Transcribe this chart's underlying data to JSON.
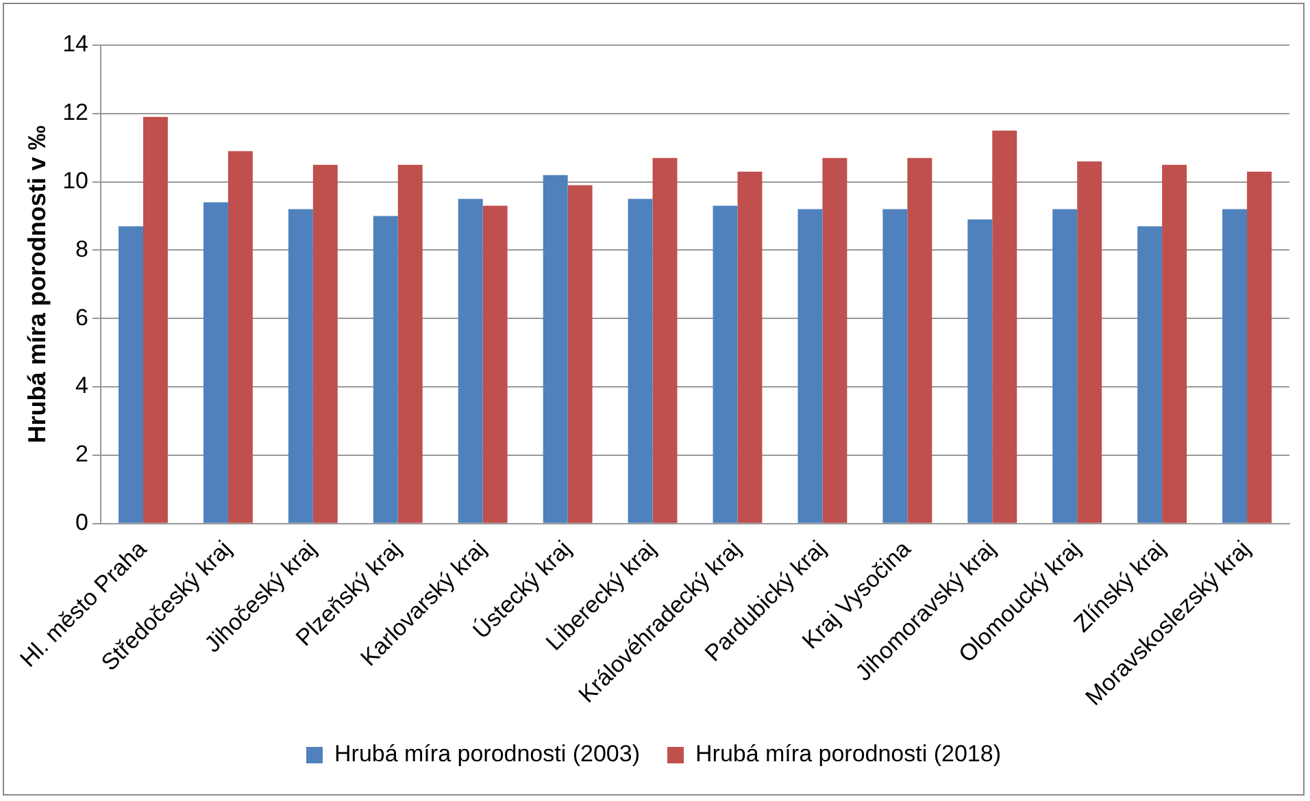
{
  "chart_data": {
    "type": "bar",
    "ylabel": "Hrubá míra porodnosti v ‰",
    "categories": [
      "Hl. město Praha",
      "Středočeský kraj",
      "Jihočeský kraj",
      "Plzeňský kraj",
      "Karlovarský kraj",
      "Ústecký kraj",
      "Liberecký kraj",
      "Královéhradecký kraj",
      "Pardubický kraj",
      "Kraj Vysočina",
      "Jihomoravský kraj",
      "Olomoucký kraj",
      "Zlínský kraj",
      "Moravskoslezský kraj"
    ],
    "series": [
      {
        "name": "Hrubá míra porodnosti (2003)",
        "color": "#4f81bd",
        "values": [
          8.7,
          9.4,
          9.2,
          9.0,
          9.5,
          10.2,
          9.5,
          9.3,
          9.2,
          9.2,
          8.9,
          9.2,
          8.7,
          9.2
        ]
      },
      {
        "name": "Hrubá míra porodnosti (2018)",
        "color": "#c0504d",
        "values": [
          11.9,
          10.9,
          10.5,
          10.5,
          9.3,
          9.9,
          10.7,
          10.3,
          10.7,
          10.7,
          11.5,
          10.6,
          10.5,
          10.3
        ]
      }
    ],
    "ylim": [
      0,
      14
    ],
    "yticks": [
      0,
      2,
      4,
      6,
      8,
      10,
      12,
      14
    ],
    "grid": "y",
    "legend": "bottom"
  }
}
